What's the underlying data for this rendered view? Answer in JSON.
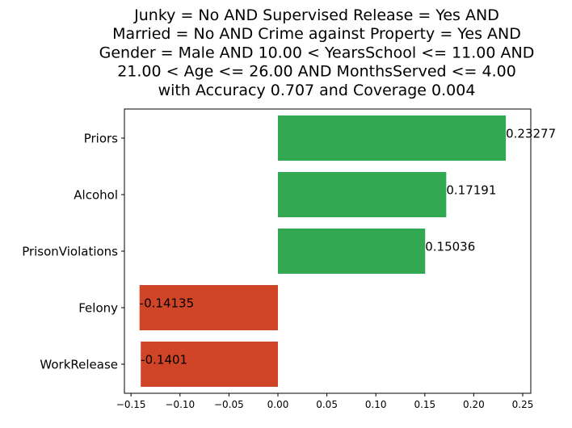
{
  "chart_data": {
    "type": "bar",
    "orientation": "horizontal",
    "title_lines": [
      "Junky = No AND Supervised Release = Yes AND",
      "Married = No AND Crime against Property = Yes AND",
      "Gender = Male AND 10.00 < YearsSchool <= 11.00 AND",
      "21.00 < Age <= 26.00 AND MonthsServed <= 4.00",
      "with Accuracy 0.707 and Coverage 0.004"
    ],
    "categories": [
      "Priors",
      "Alcohol",
      "PrisonViolations",
      "Felony",
      "WorkRelease"
    ],
    "values": [
      0.23277,
      0.17191,
      0.15036,
      -0.14135,
      -0.1401
    ],
    "value_labels": [
      "0.23277",
      "0.17191",
      "0.15036",
      "-0.14135",
      "-0.1401"
    ],
    "xlim": [
      -0.16,
      0.252
    ],
    "xticks": [
      -0.15,
      -0.1,
      -0.05,
      0.0,
      0.05,
      0.1,
      0.15,
      0.2,
      0.25
    ],
    "xtick_labels": [
      "−0.15",
      "−0.10",
      "−0.05",
      "0.00",
      "0.05",
      "0.10",
      "0.15",
      "0.20",
      "0.25"
    ],
    "colors": {
      "positive": "#33a853",
      "negative": "#d04428"
    },
    "xlabel": "",
    "ylabel": "",
    "grid": false,
    "legend": "none"
  }
}
